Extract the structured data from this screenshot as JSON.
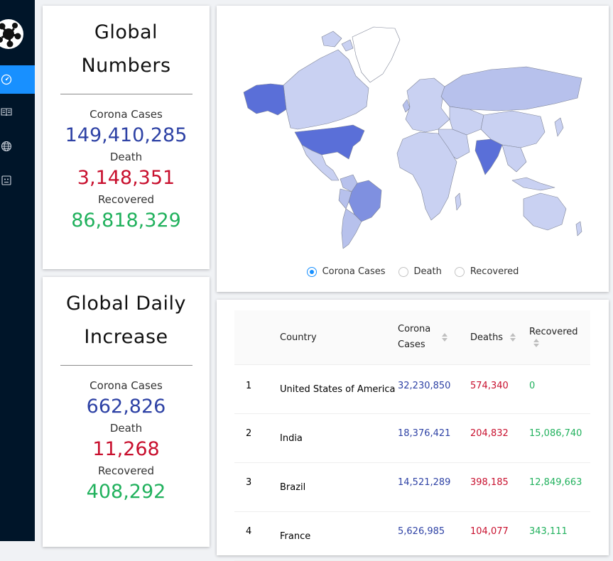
{
  "sidebar": {
    "items": [
      {
        "icon": "dashboard-icon",
        "active": true
      },
      {
        "icon": "book-icon",
        "active": false
      },
      {
        "icon": "globe-icon",
        "active": false
      },
      {
        "icon": "id-card-icon",
        "active": false
      }
    ]
  },
  "global": {
    "title_line1": "Global",
    "title_line2": "Numbers",
    "cases_label": "Corona Cases",
    "cases": "149,410,285",
    "death_label": "Death",
    "deaths": "3,148,351",
    "recovered_label": "Recovered",
    "recovered": "86,818,329"
  },
  "daily": {
    "title_line1": "Global Daily",
    "title_line2": "Increase",
    "cases_label": "Corona Cases",
    "cases": "662,826",
    "death_label": "Death",
    "deaths": "11,268",
    "recovered_label": "Recovered",
    "recovered": "408,292"
  },
  "map": {
    "options": [
      "Corona Cases",
      "Death",
      "Recovered"
    ],
    "selected": "Corona Cases",
    "colors": {
      "high": "#5a6fd8",
      "mid": "#7f90e0",
      "low": "#b7c1ec",
      "lighter": "#c9d1f2",
      "none": "#ffffff"
    }
  },
  "table": {
    "headers": {
      "country": "Country",
      "cases": "Corona Cases",
      "deaths": "Deaths",
      "recovered": "Recovered"
    },
    "rows": [
      {
        "rank": "1",
        "country": "United States of America",
        "cases": "32,230,850",
        "deaths": "574,340",
        "recovered": "0"
      },
      {
        "rank": "2",
        "country": "India",
        "cases": "18,376,421",
        "deaths": "204,832",
        "recovered": "15,086,740"
      },
      {
        "rank": "3",
        "country": "Brazil",
        "cases": "14,521,289",
        "deaths": "398,185",
        "recovered": "12,849,663"
      },
      {
        "rank": "4",
        "country": "France",
        "cases": "5,626,985",
        "deaths": "104,077",
        "recovered": "343,111"
      }
    ]
  }
}
